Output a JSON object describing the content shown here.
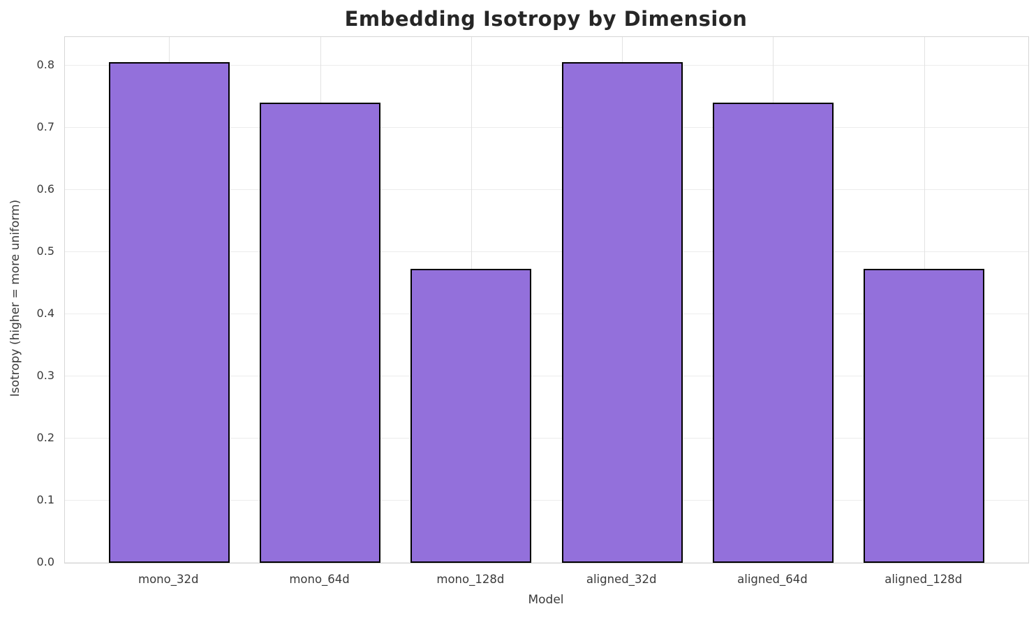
{
  "title": "Embedding Isotropy by Dimension",
  "chart_data": {
    "type": "bar",
    "title": "Embedding Isotropy by Dimension",
    "xlabel": "Model",
    "ylabel": "Isotropy (higher = more uniform)",
    "categories": [
      "mono_32d",
      "mono_64d",
      "mono_128d",
      "aligned_32d",
      "aligned_64d",
      "aligned_128d"
    ],
    "values": [
      0.806,
      0.741,
      0.473,
      0.806,
      0.741,
      0.473
    ],
    "ylim": [
      0,
      0.846
    ],
    "yticks": [
      0.0,
      0.1,
      0.2,
      0.3,
      0.4,
      0.5,
      0.6,
      0.7,
      0.8
    ],
    "ytick_labels": [
      "0.0",
      "0.1",
      "0.2",
      "0.3",
      "0.4",
      "0.5",
      "0.6",
      "0.7",
      "0.8"
    ],
    "grid": true,
    "legend_position": "none",
    "bar_color": "#9370db",
    "bar_edge_color": "#000000",
    "grid_color": "#ececec",
    "spine_color": "#d6d6d6",
    "text_color": "#3a3a3a",
    "title_color": "#262626"
  }
}
